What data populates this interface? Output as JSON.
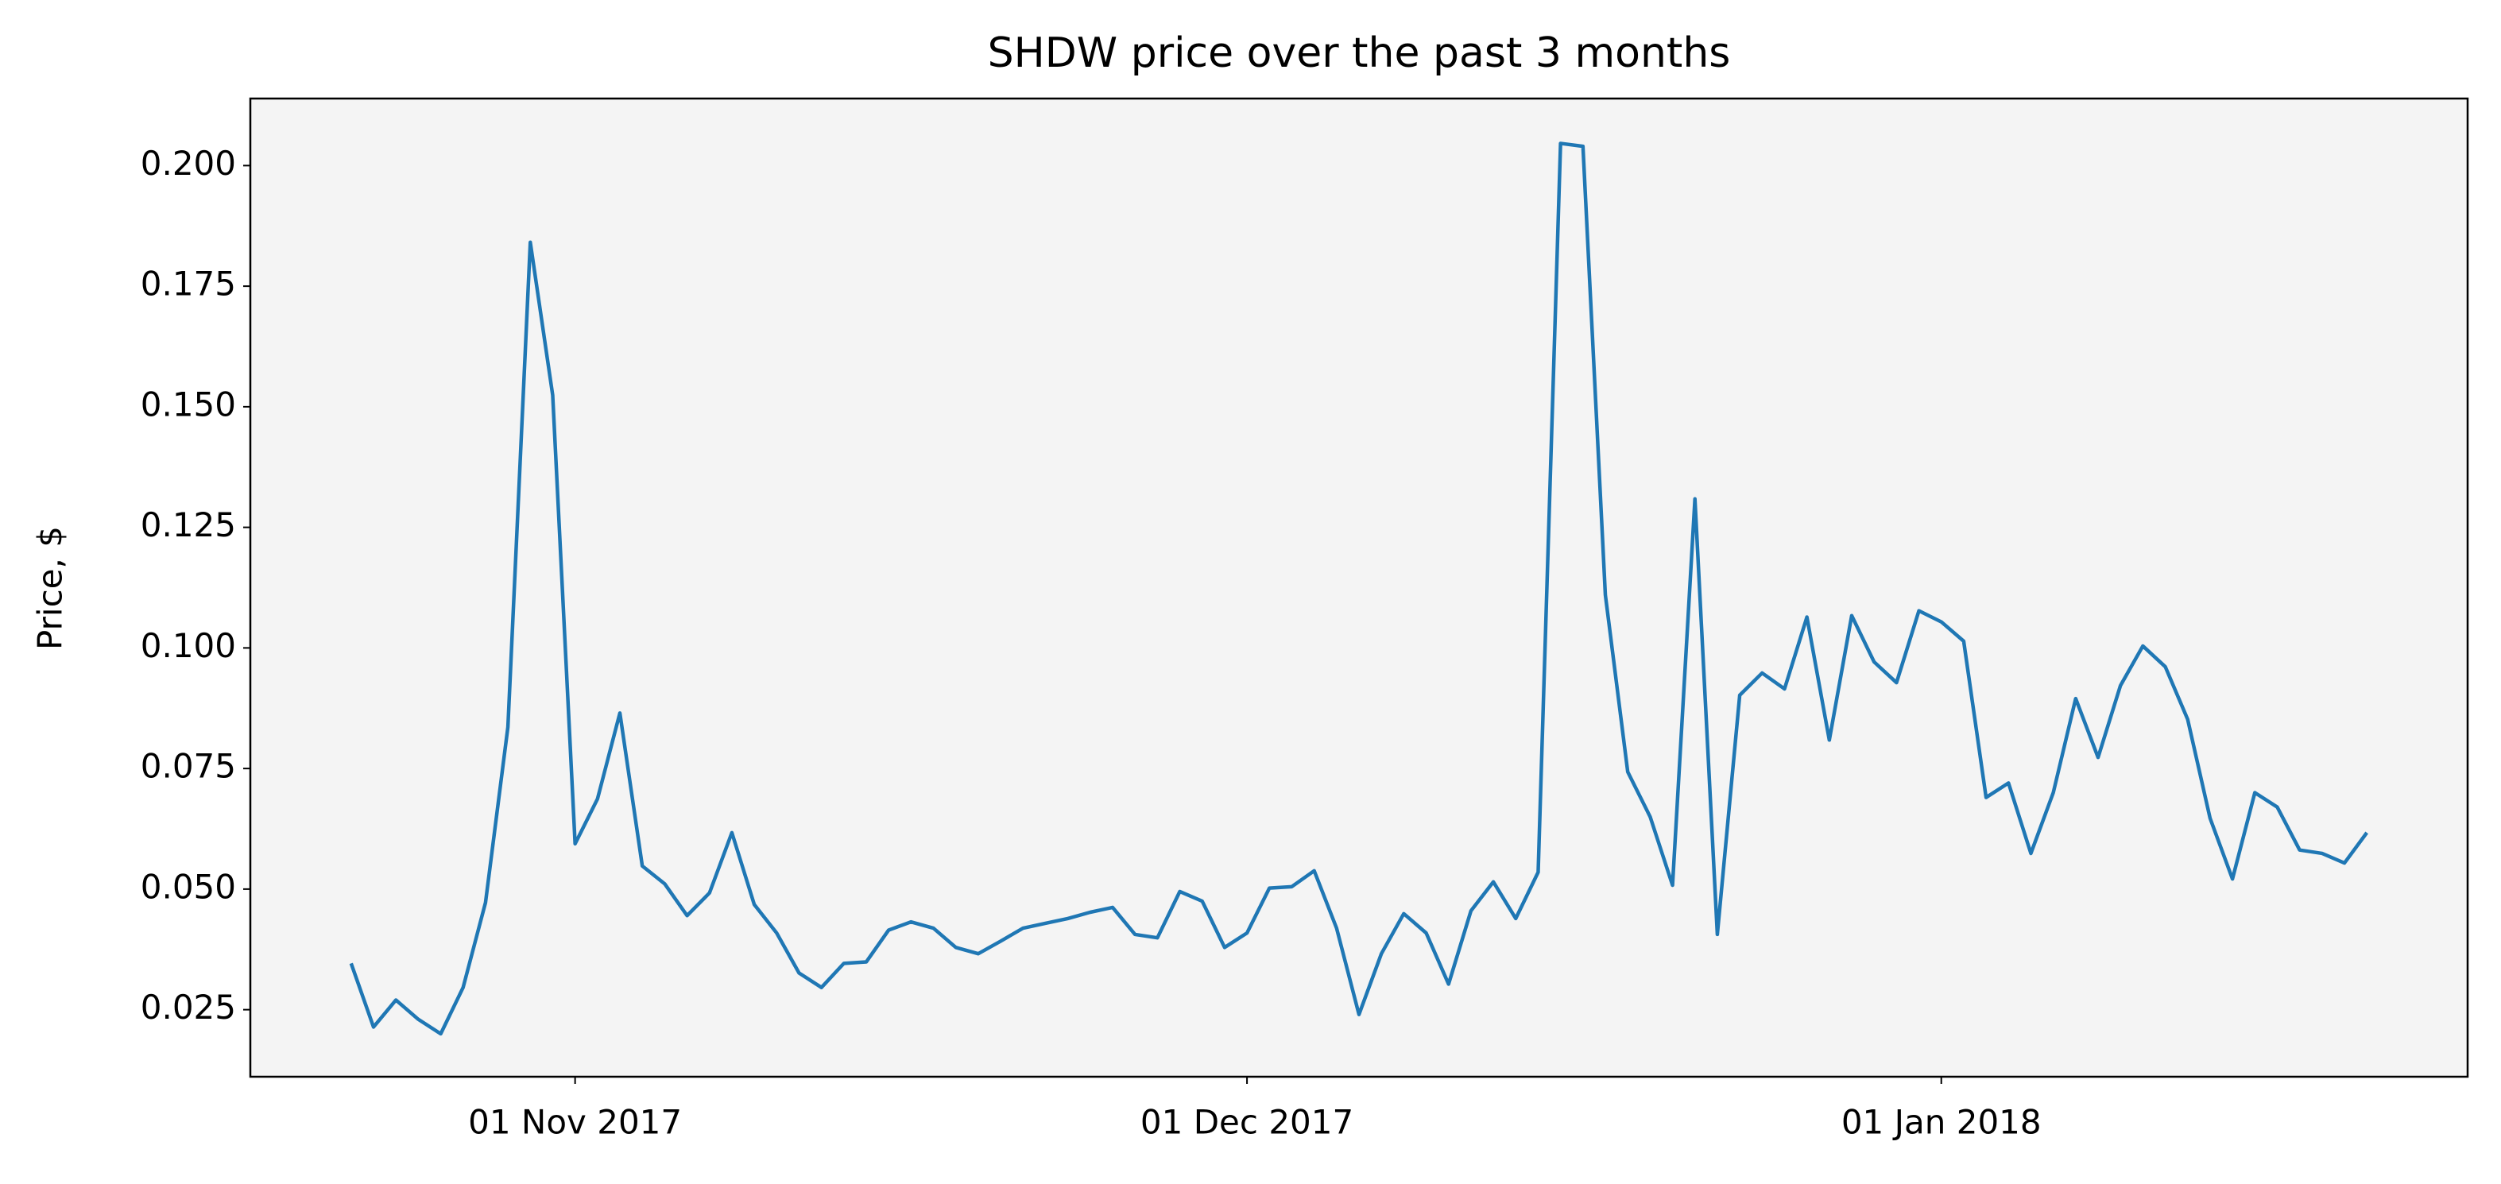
{
  "chart_data": {
    "type": "line",
    "title": "SHDW price over the past 3 months",
    "ylabel": "Price, $",
    "x": [
      "2017-10-22",
      "2017-10-23",
      "2017-10-24",
      "2017-10-25",
      "2017-10-26",
      "2017-10-27",
      "2017-10-28",
      "2017-10-29",
      "2017-10-30",
      "2017-10-31",
      "2017-11-01",
      "2017-11-02",
      "2017-11-03",
      "2017-11-04",
      "2017-11-05",
      "2017-11-06",
      "2017-11-07",
      "2017-11-08",
      "2017-11-09",
      "2017-11-10",
      "2017-11-11",
      "2017-11-12",
      "2017-11-13",
      "2017-11-14",
      "2017-11-15",
      "2017-11-16",
      "2017-11-17",
      "2017-11-18",
      "2017-11-19",
      "2017-11-20",
      "2017-11-21",
      "2017-11-22",
      "2017-11-23",
      "2017-11-24",
      "2017-11-25",
      "2017-11-26",
      "2017-11-27",
      "2017-11-28",
      "2017-11-29",
      "2017-11-30",
      "2017-12-01",
      "2017-12-02",
      "2017-12-03",
      "2017-12-04",
      "2017-12-05",
      "2017-12-06",
      "2017-12-07",
      "2017-12-08",
      "2017-12-09",
      "2017-12-10",
      "2017-12-11",
      "2017-12-12",
      "2017-12-13",
      "2017-12-14",
      "2017-12-15",
      "2017-12-16",
      "2017-12-17",
      "2017-12-18",
      "2017-12-19",
      "2017-12-20",
      "2017-12-21",
      "2017-12-22",
      "2017-12-23",
      "2017-12-24",
      "2017-12-25",
      "2017-12-26",
      "2017-12-27",
      "2017-12-28",
      "2017-12-29",
      "2017-12-30",
      "2017-12-31",
      "2018-01-01",
      "2018-01-02",
      "2018-01-03",
      "2018-01-04",
      "2018-01-05",
      "2018-01-06",
      "2018-01-07",
      "2018-01-08",
      "2018-01-09",
      "2018-01-10",
      "2018-01-11",
      "2018-01-12",
      "2018-01-13",
      "2018-01-14",
      "2018-01-15",
      "2018-01-16",
      "2018-01-17",
      "2018-01-18",
      "2018-01-19",
      "2018-01-20"
    ],
    "series": [
      {
        "name": "SHDW",
        "color": "#1f77b4",
        "values": [
          0.0346,
          0.0214,
          0.027,
          0.023,
          0.02,
          0.0296,
          0.0472,
          0.0836,
          0.1841,
          0.1524,
          0.0594,
          0.0687,
          0.0865,
          0.0548,
          0.0511,
          0.0445,
          0.0492,
          0.0617,
          0.0468,
          0.0409,
          0.0326,
          0.0296,
          0.0346,
          0.0349,
          0.0415,
          0.0432,
          0.0419,
          0.0379,
          0.0366,
          0.0392,
          0.0419,
          0.0429,
          0.0439,
          0.0452,
          0.0462,
          0.0406,
          0.0399,
          0.0495,
          0.0475,
          0.0379,
          0.0409,
          0.0502,
          0.0505,
          0.0538,
          0.0419,
          0.024,
          0.0366,
          0.0449,
          0.0409,
          0.0303,
          0.0455,
          0.0515,
          0.0439,
          0.0535,
          0.2046,
          0.204,
          0.111,
          0.0743,
          0.065,
          0.0508,
          0.1309,
          0.0406,
          0.0902,
          0.0948,
          0.0915,
          0.1064,
          0.0809,
          0.1067,
          0.0971,
          0.0928,
          0.1077,
          0.1054,
          0.1014,
          0.069,
          0.072,
          0.0574,
          0.07,
          0.0895,
          0.0773,
          0.0922,
          0.1004,
          0.0961,
          0.0852,
          0.0647,
          0.0521,
          0.07,
          0.067,
          0.0581,
          0.0574,
          0.0554,
          0.0617
        ]
      }
    ],
    "xlim": [
      "2017-10-17T12:00:00Z",
      "2018-01-24T12:00:00Z"
    ],
    "xticks": [
      {
        "value": "2017-11-01",
        "label": "01 Nov 2017"
      },
      {
        "value": "2017-12-01",
        "label": "01 Dec 2017"
      },
      {
        "value": "2018-01-01",
        "label": "01 Jan 2018"
      }
    ],
    "ylim": [
      0.0111,
      0.2139
    ],
    "yticks": [
      0.025,
      {
        "value": 0.05,
        "label": "0.050"
      },
      0.075,
      {
        "value": 0.1,
        "label": "0.100"
      },
      0.125,
      {
        "value": 0.15,
        "label": "0.150"
      },
      0.175,
      {
        "value": 0.2,
        "label": "0.200"
      }
    ],
    "background": "#f4f4f4",
    "grid": false
  }
}
